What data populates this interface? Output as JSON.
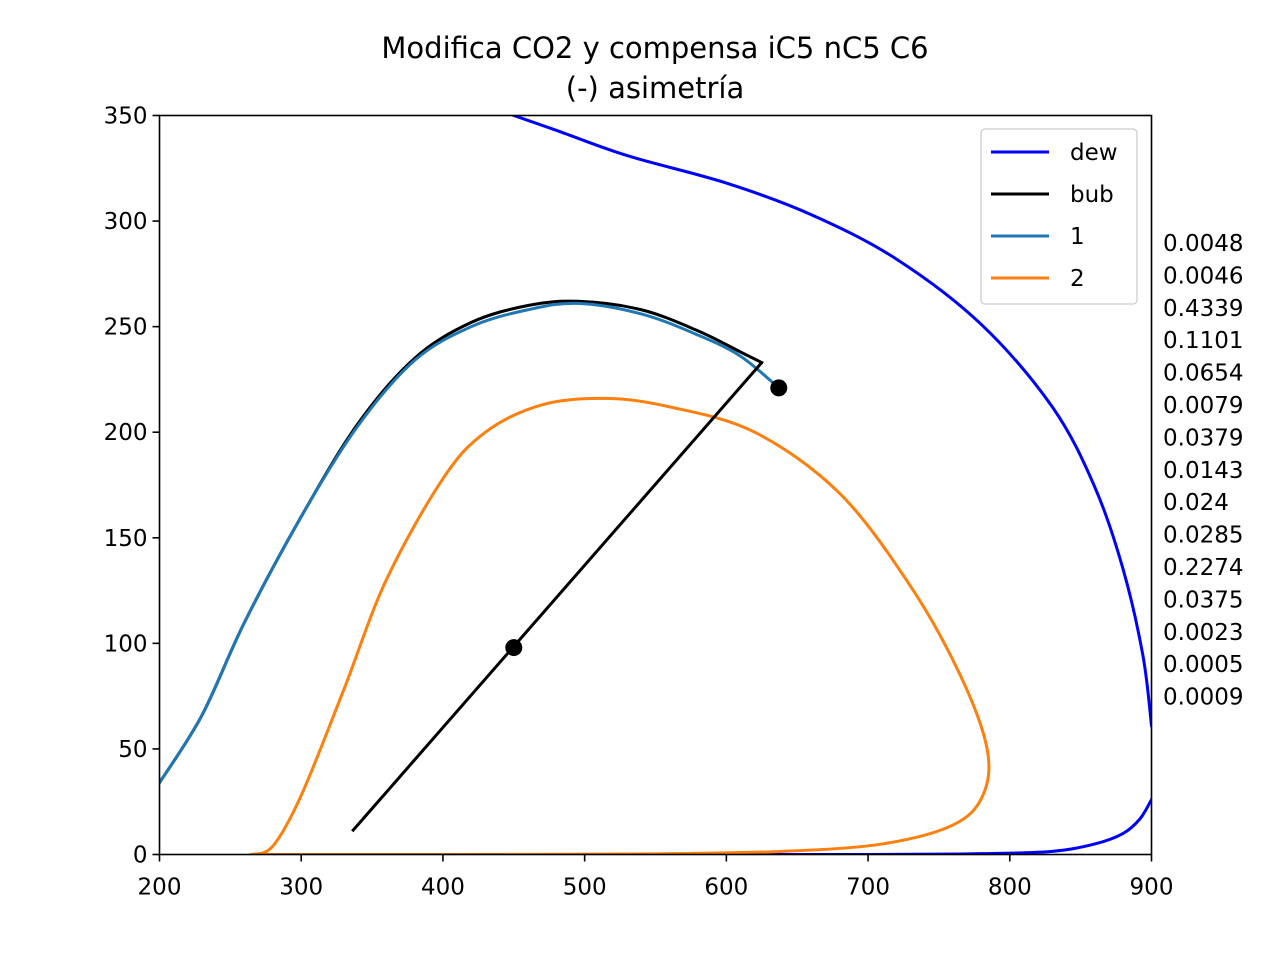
{
  "chart_data": {
    "type": "line",
    "title": "Modifica CO2 y compensa iC5 nC5 C6",
    "subtitle": "(-) asimetría",
    "xlabel": "",
    "ylabel": "",
    "xlim": [
      200,
      900
    ],
    "ylim": [
      0,
      350
    ],
    "xticks": [
      "200",
      "300",
      "400",
      "500",
      "600",
      "700",
      "800",
      "900"
    ],
    "yticks": [
      "0",
      "50",
      "100",
      "150",
      "200",
      "250",
      "300",
      "350"
    ],
    "grid": false,
    "legend_position": "top-right",
    "series": [
      {
        "name": "dew",
        "color": "#0000ff",
        "segments": [
          [
            [
              450,
              350
            ],
            [
              480,
              343
            ],
            [
              530,
              331
            ],
            [
              600,
              318
            ],
            [
              660,
              303
            ],
            [
              720,
              282
            ],
            [
              780,
              251
            ],
            [
              830,
              212
            ],
            [
              860,
              174
            ],
            [
              880,
              135
            ],
            [
              894,
              94
            ],
            [
              900,
              61
            ]
          ],
          [
            [
              310,
              0
            ],
            [
              500,
              0
            ],
            [
              700,
              0
            ],
            [
              780,
              0.4
            ],
            [
              830,
              1.5
            ],
            [
              860,
              5
            ],
            [
              880,
              10
            ],
            [
              892,
              17
            ],
            [
              900,
              26
            ]
          ]
        ]
      },
      {
        "name": "bub",
        "color": "#000000",
        "segments": [
          [
            [
              200,
              34
            ],
            [
              230,
              66
            ],
            [
              260,
              110
            ],
            [
              300,
              160
            ],
            [
              340,
              204
            ],
            [
              380,
              235
            ],
            [
              420,
              252
            ],
            [
              460,
              260
            ],
            [
              495,
              262
            ],
            [
              540,
              258
            ],
            [
              580,
              248
            ],
            [
              610,
              238
            ],
            [
              625,
              233
            ]
          ]
        ]
      },
      {
        "name": "1",
        "color": "#1f77b4",
        "segments": [
          [
            [
              200,
              34
            ],
            [
              230,
              66
            ],
            [
              260,
              110
            ],
            [
              300,
              160
            ],
            [
              340,
              203
            ],
            [
              380,
              234
            ],
            [
              420,
              250
            ],
            [
              460,
              258
            ],
            [
              495,
              261
            ],
            [
              540,
              256
            ],
            [
              580,
              246
            ],
            [
              610,
              236
            ],
            [
              637,
              221
            ]
          ]
        ]
      },
      {
        "name": "2",
        "color": "#ff7f0e",
        "segments": [
          [
            [
              265,
              0
            ],
            [
              280,
              4
            ],
            [
              300,
              28
            ],
            [
              330,
              78
            ],
            [
              360,
              130
            ],
            [
              400,
              178
            ],
            [
              430,
              200
            ],
            [
              470,
              213
            ],
            [
              515,
              216
            ],
            [
              560,
              212
            ],
            [
              620,
              200
            ],
            [
              680,
              171
            ],
            [
              730,
              127
            ],
            [
              765,
              85
            ],
            [
              784,
              50
            ],
            [
              781,
              28
            ],
            [
              760,
              14
            ],
            [
              710,
              5
            ],
            [
              640,
              1.5
            ],
            [
              550,
              0.3
            ],
            [
              400,
              0
            ],
            [
              265,
              0
            ]
          ]
        ]
      }
    ],
    "tie_line": {
      "color": "#000000",
      "points": [
        [
          336,
          11
        ],
        [
          625,
          233
        ]
      ]
    },
    "markers": [
      {
        "x": 450,
        "y": 98,
        "color": "#000000"
      },
      {
        "x": 637,
        "y": 221,
        "color": "#000000"
      }
    ],
    "side_values": [
      "0.0048",
      "0.0046",
      "0.4339",
      "0.1101",
      "0.0654",
      "0.0079",
      "0.0379",
      "0.0143",
      "0.024",
      "0.0285",
      "0.2274",
      "0.0375",
      "0.0023",
      "0.0005",
      "0.0009"
    ]
  }
}
